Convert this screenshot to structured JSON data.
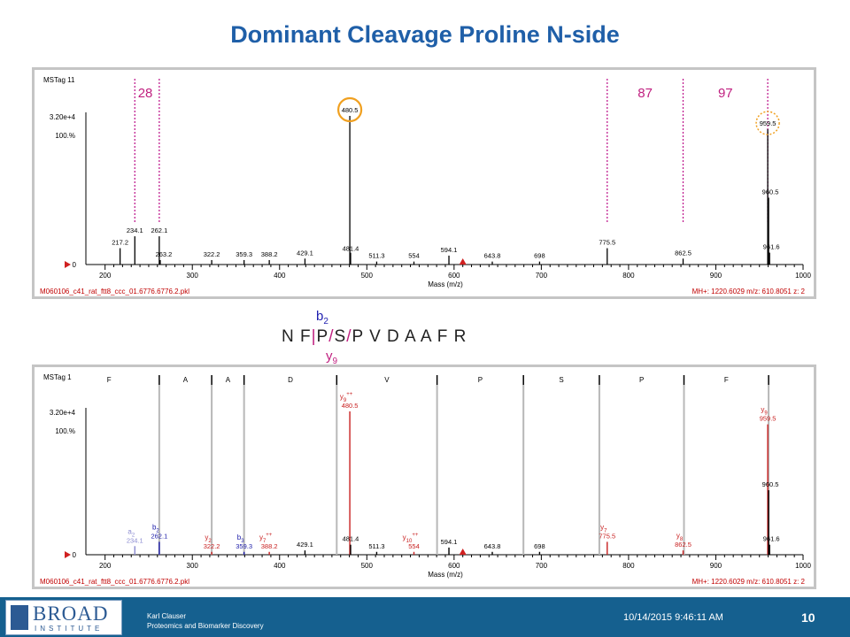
{
  "page": {
    "title": "Dominant Cleavage Proline N-side",
    "footer": {
      "logo_main": "BROAD",
      "logo_sub": "INSTITUTE",
      "author": "Karl Clauser",
      "dept": "Proteomics and Biomarker Discovery",
      "datetime": "10/14/2015 9:46:11 AM",
      "page_number": "10"
    }
  },
  "sequence": {
    "text": "N F P S P V D A A F R",
    "parts": [
      "N F",
      "|",
      "P",
      "/",
      "S",
      "/",
      "P V D A A F R"
    ],
    "b_label": "b",
    "b_sub": "2",
    "y_label": "y",
    "y_sub": "9"
  },
  "chart_data": [
    {
      "type": "bar",
      "panel_label": "MSTag 11",
      "y_scale": "3.20e+4",
      "y_percent": "100.%",
      "xlabel": "Mass (m/z)",
      "xlim": [
        178,
        1000
      ],
      "xticks": [
        200,
        300,
        400,
        500,
        600,
        700,
        800,
        900,
        1000
      ],
      "footer_left": "M060106_c41_rat_ftt8_ccc_01.6776.6776.2.pkl",
      "footer_right": "MH+: 1220.6029   m/z: 610.8051   z: 2",
      "annotations": [
        "28",
        "87",
        "97"
      ],
      "peaks": [
        {
          "x": 217.2,
          "y": 0.11,
          "label": "217.2"
        },
        {
          "x": 234.1,
          "y": 0.19,
          "label": "234.1"
        },
        {
          "x": 262.1,
          "y": 0.19,
          "label": "262.1"
        },
        {
          "x": 263.2,
          "y": 0.03,
          "label": "263.2"
        },
        {
          "x": 322.2,
          "y": 0.03,
          "label": "322.2"
        },
        {
          "x": 359.3,
          "y": 0.03,
          "label": "359.3"
        },
        {
          "x": 388.2,
          "y": 0.03,
          "label": "388.2"
        },
        {
          "x": 429.1,
          "y": 0.04,
          "label": "429.1"
        },
        {
          "x": 480.5,
          "y": 1.0,
          "label": "480.5"
        },
        {
          "x": 481.4,
          "y": 0.08,
          "label": "481.4"
        },
        {
          "x": 511.3,
          "y": 0.02,
          "label": "511.3"
        },
        {
          "x": 554,
          "y": 0.02,
          "label": "554"
        },
        {
          "x": 594.1,
          "y": 0.06,
          "label": "594.1"
        },
        {
          "x": 643.8,
          "y": 0.02,
          "label": "643.8"
        },
        {
          "x": 698,
          "y": 0.02,
          "label": "698"
        },
        {
          "x": 775.5,
          "y": 0.11,
          "label": "775.5"
        },
        {
          "x": 862.5,
          "y": 0.04,
          "label": "862.5"
        },
        {
          "x": 959.5,
          "y": 0.91,
          "label": "959.5"
        },
        {
          "x": 960.5,
          "y": 0.45,
          "label": "960.5"
        },
        {
          "x": 961.6,
          "y": 0.08,
          "label": "961.6"
        }
      ]
    },
    {
      "type": "bar",
      "panel_label": "MSTag 1",
      "y_scale": "3.20e+4",
      "y_percent": "100.%",
      "xlabel": "Mass (m/z)",
      "xlim": [
        178,
        1000
      ],
      "xticks": [
        200,
        300,
        400,
        500,
        600,
        700,
        800,
        900,
        1000
      ],
      "footer_left": "M060106_c41_rat_ftt8_ccc_01.6776.6776.2.pkl",
      "footer_right": "MH+: 1220.6029   m/z: 610.8051   z: 2",
      "residues": [
        "F",
        "A",
        "A",
        "D",
        "V",
        "P",
        "S",
        "P",
        "F"
      ],
      "peaks": [
        {
          "x": 234.1,
          "y": 0.06,
          "label": "234.1",
          "ion": "a",
          "sub": "2",
          "sup": "",
          "color": "#8a8ad0"
        },
        {
          "x": 262.1,
          "y": 0.09,
          "label": "262.1",
          "ion": "b",
          "sub": "2",
          "sup": "",
          "color": "#1a1aa8"
        },
        {
          "x": 322.2,
          "y": 0.02,
          "label": "322.2",
          "ion": "y",
          "sub": "2",
          "sup": "",
          "color": "#c82020"
        },
        {
          "x": 359.3,
          "y": 0.02,
          "label": "359.3",
          "ion": "b",
          "sub": "3",
          "sup": "",
          "color": "#1a1aa8"
        },
        {
          "x": 388.2,
          "y": 0.02,
          "label": "388.2",
          "ion": "y",
          "sub": "7",
          "sup": "++",
          "color": "#c82020"
        },
        {
          "x": 429.1,
          "y": 0.03,
          "label": "429.1",
          "ion": "",
          "sub": "",
          "sup": "",
          "color": "#000000"
        },
        {
          "x": 480.5,
          "y": 1.0,
          "label": "480.5",
          "ion": "y",
          "sub": "9",
          "sup": "++",
          "color": "#c82020"
        },
        {
          "x": 481.4,
          "y": 0.07,
          "label": "481.4",
          "ion": "",
          "sub": "",
          "sup": "",
          "color": "#000000"
        },
        {
          "x": 511.3,
          "y": 0.02,
          "label": "511.3",
          "ion": "",
          "sub": "",
          "sup": "",
          "color": "#000000"
        },
        {
          "x": 554,
          "y": 0.02,
          "label": "554",
          "ion": "y",
          "sub": "10",
          "sup": "++",
          "color": "#c82020"
        },
        {
          "x": 594.1,
          "y": 0.05,
          "label": "594.1",
          "ion": "",
          "sub": "",
          "sup": "",
          "color": "#000000"
        },
        {
          "x": 643.8,
          "y": 0.02,
          "label": "643.8",
          "ion": "",
          "sub": "",
          "sup": "",
          "color": "#000000"
        },
        {
          "x": 698,
          "y": 0.02,
          "label": "698",
          "ion": "",
          "sub": "",
          "sup": "",
          "color": "#000000"
        },
        {
          "x": 775.5,
          "y": 0.09,
          "label": "775.5",
          "ion": "y",
          "sub": "7",
          "sup": "",
          "color": "#c82020"
        },
        {
          "x": 862.5,
          "y": 0.03,
          "label": "862.5",
          "ion": "y",
          "sub": "8",
          "sup": "",
          "color": "#c82020"
        },
        {
          "x": 959.5,
          "y": 0.91,
          "label": "959.5",
          "ion": "y",
          "sub": "9",
          "sup": "",
          "color": "#c82020"
        },
        {
          "x": 960.5,
          "y": 0.45,
          "label": "960.5",
          "ion": "",
          "sub": "",
          "sup": "",
          "color": "#000000"
        },
        {
          "x": 961.6,
          "y": 0.07,
          "label": "961.6",
          "ion": "",
          "sub": "",
          "sup": "",
          "color": "#000000"
        }
      ]
    }
  ]
}
